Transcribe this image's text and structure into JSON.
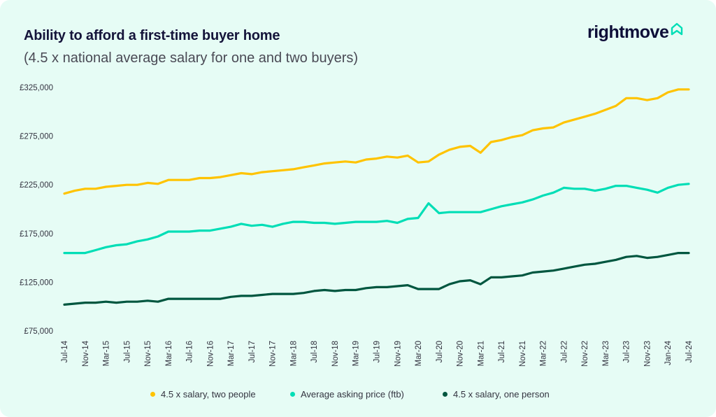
{
  "header": {
    "title": "Ability to afford a first-time buyer home",
    "subtitle": "(4.5 x national average salary for one and two buyers)",
    "logo_text": "rightmove",
    "logo_icon": "house-outline-icon",
    "brand_color": "#0e0e38",
    "logo_accent": "#00deb6"
  },
  "chart_data": {
    "type": "line",
    "title": "Ability to afford a first-time buyer home",
    "subtitle": "(4.5 x national average salary for one and two buyers)",
    "xlabel": "",
    "ylabel": "",
    "ylim": [
      75000,
      325000
    ],
    "yticks": [
      "£75,000",
      "£125,000",
      "£175,000",
      "£225,000",
      "£275,000",
      "£325,000"
    ],
    "ytick_values": [
      75000,
      125000,
      175000,
      225000,
      275000,
      325000
    ],
    "xticks": [
      "Jul-14",
      "Nov-14",
      "Mar-15",
      "Jul-15",
      "Nov-15",
      "Mar-16",
      "Jul-16",
      "Nov-16",
      "Mar-17",
      "Jul-17",
      "Nov-17",
      "Mar-18",
      "Jul-18",
      "Nov-18",
      "Mar-19",
      "Jul-19",
      "Nov-19",
      "Mar-20",
      "Jul-20",
      "Nov-20",
      "Mar-21",
      "Jul-21",
      "Nov-21",
      "Mar-22",
      "Jul-22",
      "Nov-22",
      "Mar-23",
      "Jul-23",
      "Nov-23",
      "Jan-24",
      "Jul-24"
    ],
    "grid": false,
    "legend_position": "bottom",
    "x_note": "values sampled every two months from Jul-14 to Jul-24",
    "series": [
      {
        "name": "4.5 x salary, two people",
        "color": "#ffc300",
        "values": [
          216000,
          219000,
          221000,
          221000,
          223000,
          224000,
          225000,
          225000,
          227000,
          226000,
          230000,
          230000,
          230000,
          232000,
          232000,
          233000,
          235000,
          237000,
          236000,
          238000,
          239000,
          240000,
          241000,
          243000,
          245000,
          247000,
          248000,
          249000,
          248000,
          251000,
          252000,
          254000,
          253000,
          255000,
          248000,
          249000,
          256000,
          261000,
          264000,
          265000,
          258000,
          269000,
          271000,
          274000,
          276000,
          281000,
          283000,
          284000,
          289000,
          292000,
          295000,
          298000,
          302000,
          306000,
          314000,
          314000,
          312000,
          314000,
          320000,
          323000,
          323000
        ]
      },
      {
        "name": "Average asking price (ftb)",
        "color": "#00deb6",
        "values": [
          155000,
          155000,
          155000,
          158000,
          161000,
          163000,
          164000,
          167000,
          169000,
          172000,
          177000,
          177000,
          177000,
          178000,
          178000,
          180000,
          182000,
          185000,
          183000,
          184000,
          182000,
          185000,
          187000,
          187000,
          186000,
          186000,
          185000,
          186000,
          187000,
          187000,
          187000,
          188000,
          186000,
          190000,
          191000,
          206000,
          196000,
          197000,
          197000,
          197000,
          197000,
          200000,
          203000,
          205000,
          207000,
          210000,
          214000,
          217000,
          222000,
          221000,
          221000,
          219000,
          221000,
          224000,
          224000,
          222000,
          220000,
          217000,
          222000,
          225000,
          226000
        ]
      },
      {
        "name": "4.5 x salary, one person",
        "color": "#00563f",
        "values": [
          102000,
          103000,
          104000,
          104000,
          105000,
          104000,
          105000,
          105000,
          106000,
          105000,
          108000,
          108000,
          108000,
          108000,
          108000,
          108000,
          110000,
          111000,
          111000,
          112000,
          113000,
          113000,
          113000,
          114000,
          116000,
          117000,
          116000,
          117000,
          117000,
          119000,
          120000,
          120000,
          121000,
          122000,
          118000,
          118000,
          118000,
          123000,
          126000,
          127000,
          123000,
          130000,
          130000,
          131000,
          132000,
          135000,
          136000,
          137000,
          139000,
          141000,
          143000,
          144000,
          146000,
          148000,
          151000,
          152000,
          150000,
          151000,
          153000,
          155000,
          155000
        ]
      }
    ]
  }
}
